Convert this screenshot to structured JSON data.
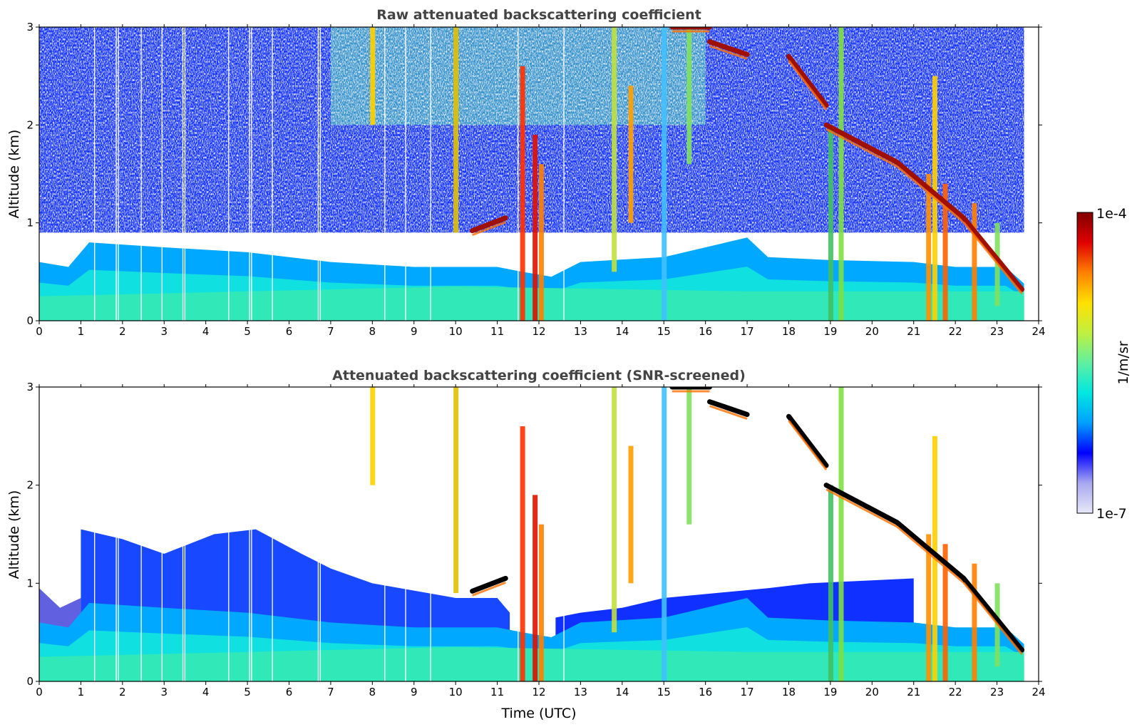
{
  "chart_data": [
    {
      "type": "heatmap",
      "title": "Raw attenuated backscattering coefficient",
      "xlabel": "",
      "ylabel": "Altitude (km)",
      "xlim": [
        0,
        24
      ],
      "ylim": [
        0,
        3
      ],
      "xticks": [
        "0",
        "1",
        "2",
        "3",
        "4",
        "5",
        "6",
        "7",
        "8",
        "9",
        "10",
        "11",
        "12",
        "13",
        "14",
        "15",
        "16",
        "17",
        "18",
        "19",
        "20",
        "21",
        "22",
        "23",
        "24"
      ],
      "yticks": [
        "0",
        "1",
        "2",
        "3"
      ],
      "data_end_hour": 23.65,
      "cloud_layers": [
        {
          "x": [
            10.4,
            11.2
          ],
          "y": [
            0.92,
            1.05
          ]
        },
        {
          "x": [
            15.2,
            16.1
          ],
          "y": [
            3.0,
            3.0
          ]
        },
        {
          "x": [
            16.1,
            17.0
          ],
          "y": [
            2.85,
            2.72
          ]
        },
        {
          "x": [
            18.0,
            18.9
          ],
          "y": [
            2.7,
            2.2
          ]
        },
        {
          "x": [
            18.9,
            20.6
          ],
          "y": [
            2.0,
            1.62
          ]
        },
        {
          "x": [
            20.6,
            22.2
          ],
          "y": [
            1.62,
            1.05
          ]
        },
        {
          "x": [
            22.2,
            23.6
          ],
          "y": [
            1.05,
            0.32
          ]
        }
      ],
      "boundary_layer_top_km": [
        0.6,
        0.75,
        0.9,
        0.9,
        0.55,
        0.55,
        0.6,
        0.8,
        0.6,
        0.55
      ]
    },
    {
      "type": "heatmap",
      "title": "Attenuated backscattering coefficient (SNR-screened)",
      "xlabel": "Time (UTC)",
      "ylabel": "Altitude (km)",
      "xlim": [
        0,
        24
      ],
      "ylim": [
        0,
        3
      ],
      "xticks": [
        "0",
        "1",
        "2",
        "3",
        "4",
        "5",
        "6",
        "7",
        "8",
        "9",
        "10",
        "11",
        "12",
        "13",
        "14",
        "15",
        "16",
        "17",
        "18",
        "19",
        "20",
        "21",
        "22",
        "23",
        "24"
      ],
      "yticks": [
        "0",
        "1",
        "2",
        "3"
      ],
      "data_end_hour": 23.65,
      "screened": true
    }
  ],
  "colorbar": {
    "label": "1/m/sr",
    "max_label": "1e-4",
    "min_label": "1e-7",
    "colormap": [
      "#e8e8f8",
      "#a8a8f0",
      "#0000ff",
      "#00a0ff",
      "#00e8e0",
      "#60f0a0",
      "#c0f040",
      "#ffe000",
      "#ff8000",
      "#e00000",
      "#800000"
    ]
  }
}
